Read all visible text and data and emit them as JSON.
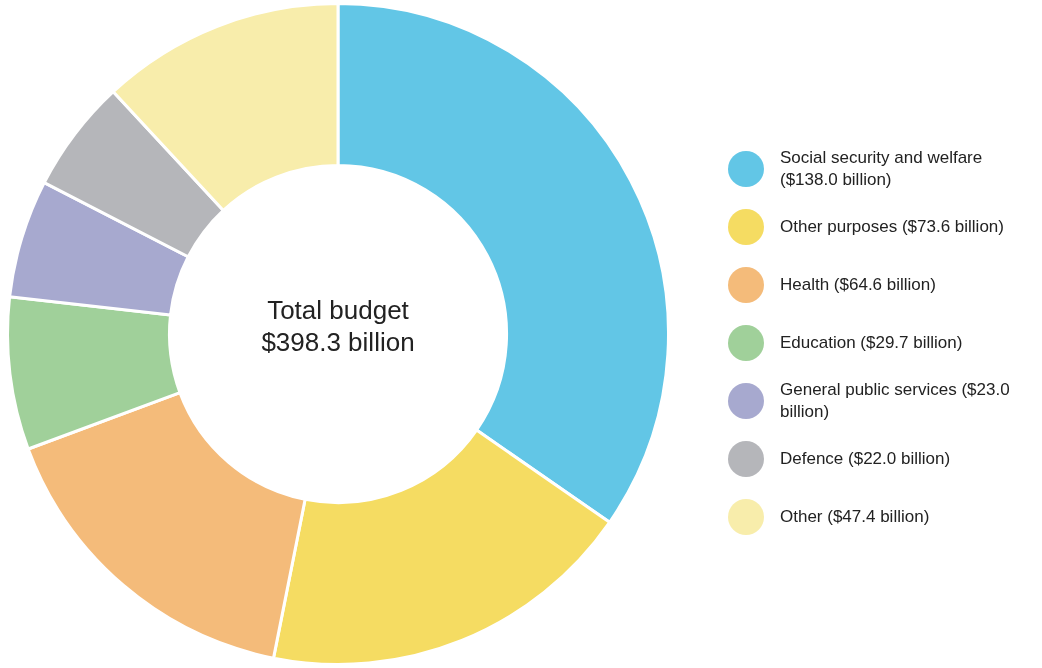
{
  "chart_data": {
    "type": "donut",
    "categories": [
      "Social security and welfare ($138.0 billion)",
      "Other purposes ($73.6 billion)",
      "Health ($64.6 billion)",
      "Education ($29.7 billion)",
      "General public services ($23.0 billion)",
      "Defence ($22.0 billion)",
      "Other ($47.4 billion)"
    ],
    "values": [
      138.0,
      73.6,
      64.6,
      29.7,
      23.0,
      22.0,
      47.4
    ],
    "colors": [
      "#62c6e6",
      "#f5dc62",
      "#f4bb7a",
      "#a0d09a",
      "#a7a9cf",
      "#b5b6ba",
      "#f8edab"
    ],
    "annotations": [
      "Total budget $398.3 billion"
    ],
    "legend": "right"
  }
}
